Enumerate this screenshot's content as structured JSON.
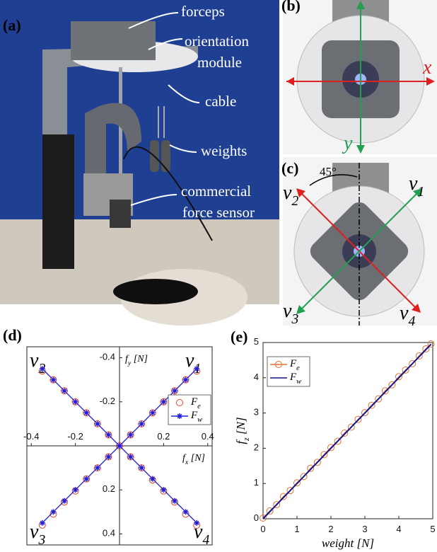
{
  "panels": {
    "a": {
      "label": "(a)",
      "annotations": [
        "forceps",
        "orientation",
        "module",
        "cable",
        "weights",
        "commercial",
        "force sensor"
      ]
    },
    "b": {
      "label": "(b)",
      "axes": [
        "x",
        "y"
      ]
    },
    "c": {
      "label": "(c)",
      "angle": "45°",
      "vectors": [
        "v_1",
        "v_2",
        "v_3",
        "v_4"
      ]
    },
    "d": {
      "label": "(d)"
    },
    "e": {
      "label": "(e)"
    }
  },
  "chart_data": [
    {
      "type": "line",
      "y_reversed": true,
      "axes_at_origin": true,
      "xlabel": "f_x [N]",
      "ylabel": "f_y [N]",
      "annotations": [
        "v_1",
        "v_2",
        "v_3",
        "v_4"
      ],
      "xlim": [
        -0.42,
        0.42
      ],
      "ylim": [
        -0.45,
        0.45
      ],
      "xticks": [
        -0.4,
        -0.2,
        0.2,
        0.4
      ],
      "yticks": [
        -0.4,
        -0.2,
        0.2,
        0.4
      ],
      "legend": "upper right",
      "series": [
        {
          "name": "F_e",
          "color": "#e8432b",
          "marker": "circle",
          "line": false,
          "x": [
            -0.35,
            -0.3,
            -0.25,
            -0.2,
            -0.15,
            -0.1,
            -0.05,
            0,
            0.05,
            0.1,
            0.15,
            0.2,
            0.25,
            0.3,
            0.35,
            null,
            -0.35,
            -0.3,
            -0.25,
            -0.2,
            -0.15,
            -0.1,
            -0.05,
            0,
            0.05,
            0.1,
            0.15,
            0.2,
            0.25,
            0.3,
            0.35
          ],
          "values": [
            0.36,
            0.31,
            0.255,
            0.205,
            0.15,
            0.1,
            0.05,
            0,
            -0.05,
            -0.1,
            -0.15,
            -0.2,
            -0.25,
            -0.3,
            -0.34,
            null,
            -0.34,
            -0.3,
            -0.25,
            -0.2,
            -0.15,
            -0.1,
            -0.05,
            0,
            0.05,
            0.1,
            0.155,
            0.205,
            0.255,
            0.31,
            0.36
          ]
        },
        {
          "name": "F_w",
          "color": "#1f1fd6",
          "marker": "star",
          "line": true,
          "x": [
            -0.35,
            -0.3,
            -0.25,
            -0.2,
            -0.15,
            -0.1,
            -0.05,
            0,
            0.05,
            0.1,
            0.15,
            0.2,
            0.25,
            0.3,
            0.35,
            null,
            -0.35,
            -0.3,
            -0.25,
            -0.2,
            -0.15,
            -0.1,
            -0.05,
            0,
            0.05,
            0.1,
            0.15,
            0.2,
            0.25,
            0.3,
            0.35
          ],
          "values": [
            0.35,
            0.3,
            0.25,
            0.2,
            0.15,
            0.1,
            0.05,
            0,
            -0.05,
            -0.1,
            -0.15,
            -0.2,
            -0.25,
            -0.3,
            -0.35,
            null,
            -0.35,
            -0.3,
            -0.25,
            -0.2,
            -0.15,
            -0.1,
            -0.05,
            0,
            0.05,
            0.1,
            0.15,
            0.2,
            0.25,
            0.3,
            0.35
          ]
        }
      ]
    },
    {
      "type": "line",
      "xlabel": "weight [N]",
      "ylabel": "f_z [N]",
      "xlim": [
        0,
        5
      ],
      "ylim": [
        0,
        5
      ],
      "xticks": [
        0,
        1,
        2,
        3,
        4,
        5
      ],
      "yticks": [
        0,
        1,
        2,
        3,
        4,
        5
      ],
      "legend": "upper left",
      "series": [
        {
          "name": "F_e",
          "color": "#e07030",
          "marker": "circle",
          "line": true,
          "x": [
            0,
            0.2,
            0.4,
            0.6,
            0.8,
            1,
            1.2,
            1.4,
            1.6,
            1.8,
            2,
            2.2,
            2.4,
            2.6,
            2.8,
            3,
            3.2,
            3.4,
            3.6,
            3.8,
            4,
            4.2,
            4.4,
            4.6,
            4.8,
            4.95
          ],
          "values": [
            0.02,
            0.22,
            0.4,
            0.63,
            0.8,
            1.02,
            1.2,
            1.43,
            1.6,
            1.82,
            2.02,
            2.2,
            2.43,
            2.6,
            2.82,
            3.01,
            3.22,
            3.4,
            3.63,
            3.8,
            4.03,
            4.22,
            4.4,
            4.62,
            4.82,
            4.96
          ]
        },
        {
          "name": "F_w",
          "color": "#14148a",
          "marker": "none",
          "line": true,
          "x": [
            0,
            4.95
          ],
          "values": [
            0,
            4.95
          ]
        }
      ]
    }
  ]
}
